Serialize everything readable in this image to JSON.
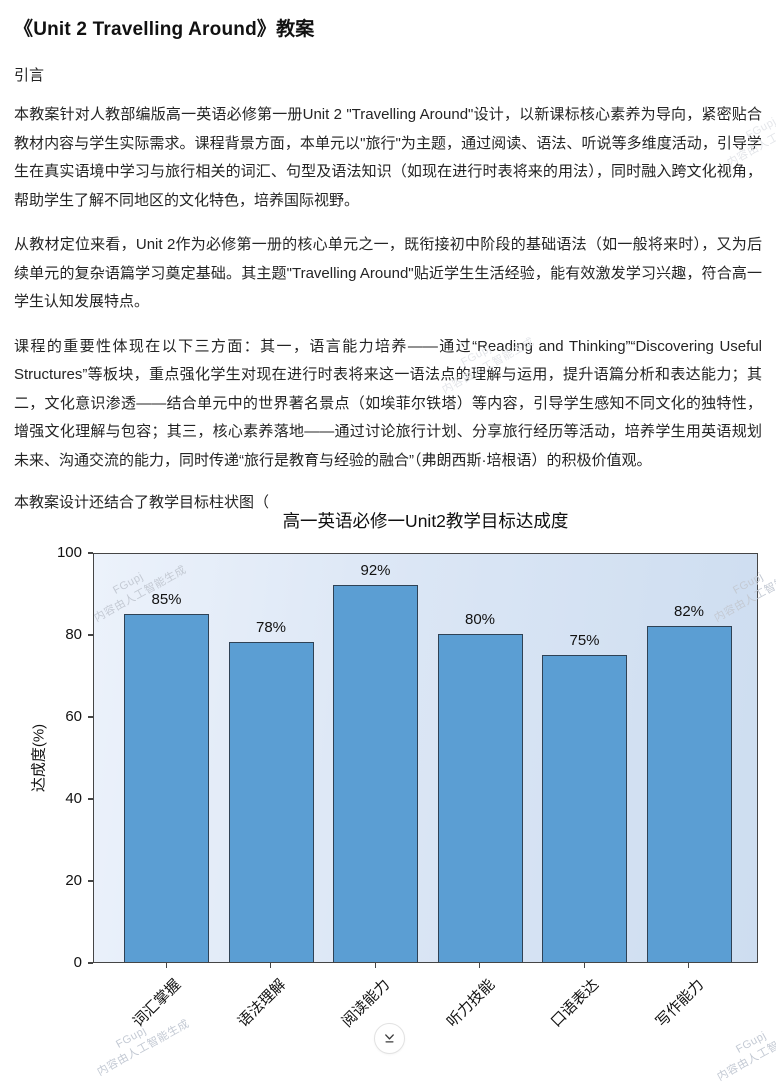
{
  "doc": {
    "title": "《Unit 2 Travelling Around》教案",
    "intro_label": "引言",
    "paragraphs": [
      "本教案针对人教部编版高一英语必修第一册Unit 2 \"Travelling Around\"设计，以新课标核心素养为导向，紧密贴合教材内容与学生实际需求。课程背景方面，本单元以\"旅行\"为主题，通过阅读、语法、听说等多维度活动，引导学生在真实语境中学习与旅行相关的词汇、句型及语法知识（如现在进行时表将来的用法），同时融入跨文化视角，帮助学生了解不同地区的文化特色，培养国际视野。",
      "从教材定位来看，Unit 2作为必修第一册的核心单元之一，既衔接初中阶段的基础语法（如一般将来时），又为后续单元的复杂语篇学习奠定基础。其主题\"Travelling Around\"贴近学生生活经验，能有效激发学习兴趣，符合高一学生认知发展特点。",
      "课程的重要性体现在以下三方面：其一，语言能力培养——通过“Reading and Thinking”“Discovering Useful Structures”等板块，重点强化学生对现在进行时表将来这一语法点的理解与运用，提升语篇分析和表达能力；其二，文化意识渗透——结合单元中的世界著名景点（如埃菲尔铁塔）等内容，引导学生感知不同文化的独特性，增强文化理解与包容；其三，核心素养落地——通过讨论旅行计划、分享旅行经历等活动，培养学生用英语规划未来、沟通交流的能力，同时传递“旅行是教育与经验的融合”（弗朗西斯·培根语）的积极价值观。"
    ],
    "pre_chart_line": "本教案设计还结合了教学目标柱状图（"
  },
  "chart_data": {
    "type": "bar",
    "title": "高一英语必修一Unit2教学目标达成度",
    "categories": [
      "词汇掌握",
      "语法理解",
      "阅读能力",
      "听力技能",
      "口语表达",
      "写作能力"
    ],
    "values": [
      85,
      78,
      92,
      80,
      75,
      82
    ],
    "value_labels": [
      "85%",
      "78%",
      "92%",
      "80%",
      "75%",
      "82%"
    ],
    "xlabel": "",
    "ylabel": "达成度(%)",
    "ylim": [
      0,
      100
    ],
    "yticks": [
      0,
      20,
      40,
      60,
      80,
      100
    ],
    "grid": false,
    "legend": "none",
    "bar_color": "#5B9ED3",
    "bar_edge_color": "#2f4255",
    "plot_bg_gradient": [
      "#ecf2fb",
      "#cdddf0"
    ]
  },
  "watermark": {
    "line1": "FGupj",
    "line2": "内容由人工智能生成"
  },
  "scroll_button": {
    "icon": "chevron-down-to-line"
  }
}
